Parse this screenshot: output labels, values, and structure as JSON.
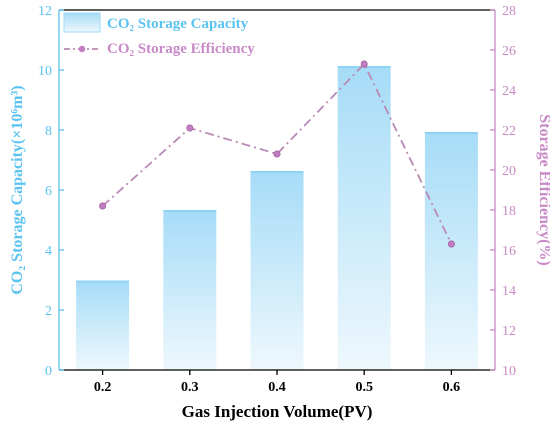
{
  "chart_data": {
    "type": "bar+line",
    "categories": [
      "0.2",
      "0.3",
      "0.4",
      "0.5",
      "0.6"
    ],
    "series": [
      {
        "name": "CO₂ Storage Capacity",
        "type": "bar",
        "axis": "left",
        "values": [
          2.95,
          5.3,
          6.6,
          10.1,
          7.9
        ]
      },
      {
        "name": "CO₂ Storage Efficiency",
        "type": "line",
        "axis": "right",
        "values": [
          18.2,
          22.1,
          20.8,
          25.3,
          16.3
        ]
      }
    ],
    "xlabel": "Gas Injection Volume(PV)",
    "ylabel_left": "CO₂ Storage Capacity(×10⁶m³)",
    "ylabel_right": "Storage Efficiency(%)",
    "ylim_left": [
      0,
      12
    ],
    "yticks_left": [
      "0",
      "2",
      "4",
      "6",
      "8",
      "10",
      "12"
    ],
    "ylim_right": [
      10,
      28
    ],
    "yticks_right": [
      "10",
      "12",
      "14",
      "16",
      "18",
      "20",
      "22",
      "24",
      "26",
      "28"
    ],
    "grid": false,
    "legend_placement": "top-left",
    "colors": {
      "bar_top": "#a6dcf7",
      "bar_bottom": "#eef8fd",
      "left_axis": "#5bc3f0",
      "right_axis": "#c88ac6",
      "line": "#b98ab4",
      "marker": "#c27cc0"
    }
  }
}
